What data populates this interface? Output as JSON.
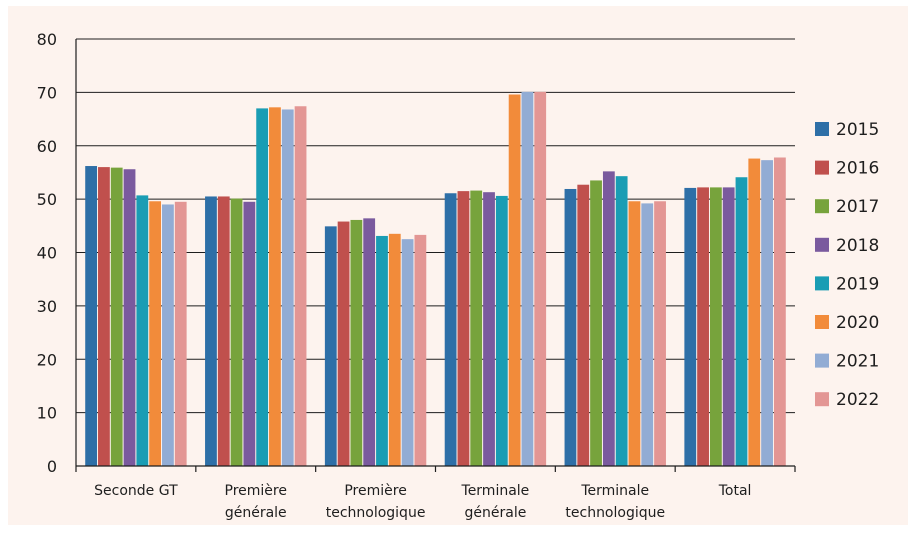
{
  "chart_data": {
    "type": "bar",
    "title": "",
    "xlabel": "",
    "ylabel": "",
    "ylim": [
      0,
      80
    ],
    "yticks": [
      "0",
      "10",
      "20",
      "30",
      "40",
      "50",
      "60",
      "70",
      "80"
    ],
    "grid": true,
    "legend_position": "right",
    "categories": [
      [
        "Seconde GT"
      ],
      [
        "Première",
        "générale"
      ],
      [
        "Première",
        "technologique"
      ],
      [
        "Terminale",
        "générale"
      ],
      [
        "Terminale",
        "technologique"
      ],
      [
        "Total"
      ]
    ],
    "series": [
      {
        "name": "2015",
        "color": "#2e6fa7",
        "values": [
          56.2,
          50.5,
          44.9,
          51.1,
          51.9,
          52.1
        ]
      },
      {
        "name": "2016",
        "color": "#c0504d",
        "values": [
          56.0,
          50.5,
          45.8,
          51.5,
          52.7,
          52.2
        ]
      },
      {
        "name": "2017",
        "color": "#77a33c",
        "values": [
          55.9,
          50.1,
          46.1,
          51.6,
          53.5,
          52.2
        ]
      },
      {
        "name": "2018",
        "color": "#7a5a9e",
        "values": [
          55.6,
          49.5,
          46.4,
          51.3,
          55.2,
          52.2
        ]
      },
      {
        "name": "2019",
        "color": "#1a9db4",
        "values": [
          50.7,
          67.0,
          43.1,
          50.6,
          54.3,
          54.1
        ]
      },
      {
        "name": "2020",
        "color": "#f28b3a",
        "values": [
          49.6,
          67.2,
          43.5,
          69.6,
          49.6,
          57.6
        ]
      },
      {
        "name": "2021",
        "color": "#92acd4",
        "values": [
          49.0,
          66.8,
          42.5,
          70.1,
          49.2,
          57.3
        ]
      },
      {
        "name": "2022",
        "color": "#e39694",
        "values": [
          49.5,
          67.4,
          43.3,
          70.1,
          49.6,
          57.8
        ]
      }
    ]
  }
}
